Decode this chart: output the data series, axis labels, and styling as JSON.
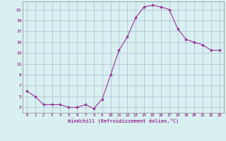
{
  "hours": [
    0,
    1,
    2,
    3,
    4,
    5,
    6,
    7,
    8,
    9,
    10,
    11,
    12,
    13,
    14,
    15,
    16,
    17,
    18,
    19,
    20,
    21,
    22,
    23
  ],
  "values": [
    6,
    5,
    3.5,
    3.5,
    3.5,
    3,
    3,
    3.5,
    2.8,
    4.5,
    9,
    13.5,
    16,
    19.5,
    21.5,
    21.8,
    21.5,
    21,
    17.5,
    15.5,
    15,
    14.5,
    13.5,
    13.5
  ],
  "line_color": "#993399",
  "marker": "D",
  "marker_size": 1.8,
  "bg_color": "#d8f0f0",
  "grid_color": "#b0b8d8",
  "xlabel": "Windchill (Refroidissement éolien,°C)",
  "tick_color": "#993399",
  "yticks": [
    3,
    5,
    7,
    9,
    11,
    13,
    15,
    17,
    19,
    21
  ],
  "ylim": [
    2.0,
    22.5
  ],
  "xlim": [
    -0.5,
    23.5
  ]
}
